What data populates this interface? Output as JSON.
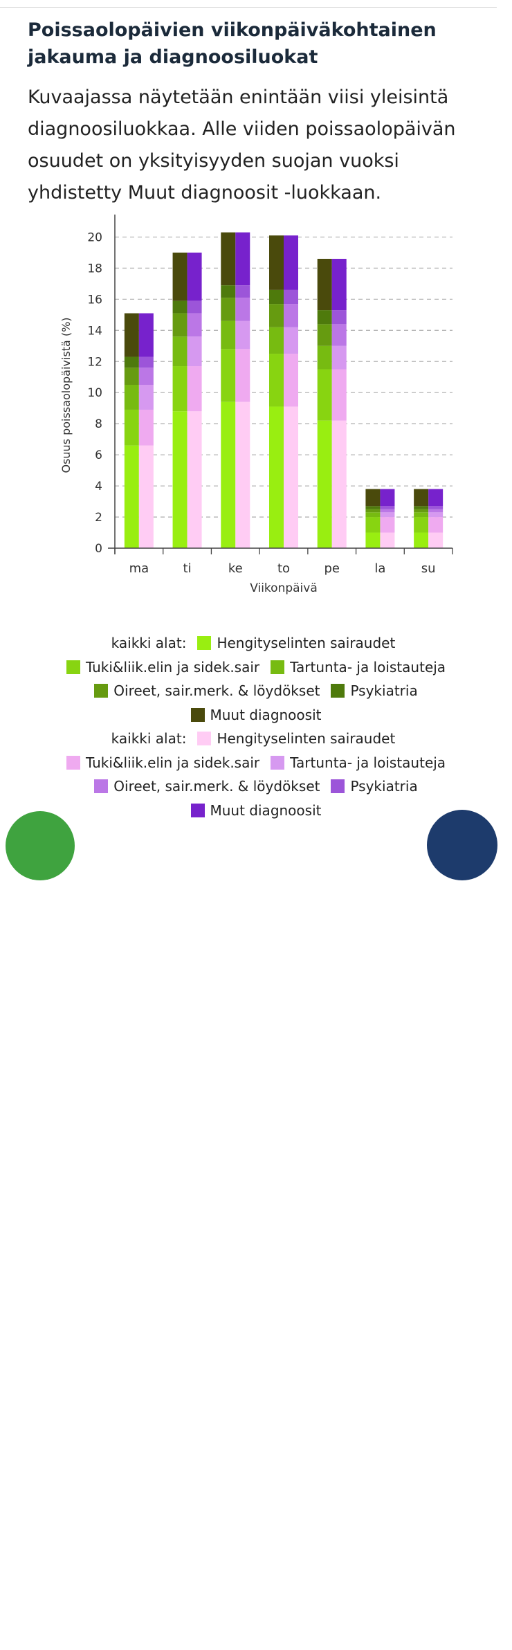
{
  "header": {
    "title": "Poissaolopäivien viikonpäiväkohtainen jakauma ja diagnoosiluokat",
    "subtitle": "Kuvaajassa näytetään enintään viisi yleisintä diagnoosiluokkaa. Alle viiden poissaolopäivän osuudet on yksityisyyden suojan vuoksi yhdistetty Muut diagnoosit -luokkaan."
  },
  "chart_data": {
    "type": "bar",
    "stacked": true,
    "grouped": true,
    "categories": [
      "ma",
      "ti",
      "ke",
      "to",
      "pe",
      "la",
      "su"
    ],
    "xlabel": "Viikonpäivä",
    "ylabel": "Osuus poissaolopäivistä (%)",
    "ylim": [
      0,
      21
    ],
    "yticks": [
      0,
      2,
      4,
      6,
      8,
      10,
      12,
      14,
      16,
      18,
      20
    ],
    "grid": "horizontal-dashed",
    "legend_position": "bottom",
    "groups": [
      {
        "label": "kaikki alat:",
        "series": [
          {
            "name": "Hengityselinten sairaudet",
            "color": "#99ee11",
            "values": [
              6.6,
              8.8,
              9.4,
              9.1,
              8.2,
              1.0,
              1.0
            ]
          },
          {
            "name": "Tuki&liik.elin ja sidek.sair",
            "color": "#88d411",
            "values": [
              2.3,
              2.9,
              3.4,
              3.4,
              3.3,
              1.0,
              1.0
            ]
          },
          {
            "name": "Tartunta- ja loistauteja",
            "color": "#77bb11",
            "values": [
              1.6,
              1.9,
              1.8,
              1.7,
              1.5,
              0.3,
              0.3
            ]
          },
          {
            "name": "Oireet, sair.merk. & löydökset",
            "color": "#669b10",
            "values": [
              1.1,
              1.5,
              1.5,
              1.5,
              1.4,
              0.2,
              0.2
            ]
          },
          {
            "name": "Psykiatria",
            "color": "#4e7a0c",
            "values": [
              0.7,
              0.8,
              0.8,
              0.9,
              0.9,
              0.2,
              0.2
            ]
          },
          {
            "name": "Muut diagnoosit",
            "color": "#4a4a0c",
            "values": [
              2.8,
              3.1,
              3.4,
              3.5,
              3.3,
              1.1,
              1.1
            ]
          }
        ]
      },
      {
        "label": "kaikki alat:",
        "series": [
          {
            "name": "Hengityselinten sairaudet",
            "color": "#ffccf4",
            "values": [
              6.6,
              8.8,
              9.4,
              9.1,
              8.2,
              1.0,
              1.0
            ]
          },
          {
            "name": "Tuki&liik.elin ja sidek.sair",
            "color": "#efaaf0",
            "values": [
              2.3,
              2.9,
              3.4,
              3.4,
              3.3,
              1.0,
              1.0
            ]
          },
          {
            "name": "Tartunta- ja loistauteja",
            "color": "#d699f0",
            "values": [
              1.6,
              1.9,
              1.8,
              1.7,
              1.5,
              0.3,
              0.3
            ]
          },
          {
            "name": "Oireet, sair.merk. & löydökset",
            "color": "#bb77e6",
            "values": [
              1.1,
              1.5,
              1.5,
              1.5,
              1.4,
              0.2,
              0.2
            ]
          },
          {
            "name": "Psykiatria",
            "color": "#9c55d9",
            "values": [
              0.7,
              0.8,
              0.8,
              0.9,
              0.9,
              0.2,
              0.2
            ]
          },
          {
            "name": "Muut diagnoosit",
            "color": "#7722cc",
            "values": [
              2.8,
              3.1,
              3.4,
              3.5,
              3.3,
              1.1,
              1.1
            ]
          }
        ]
      }
    ]
  }
}
